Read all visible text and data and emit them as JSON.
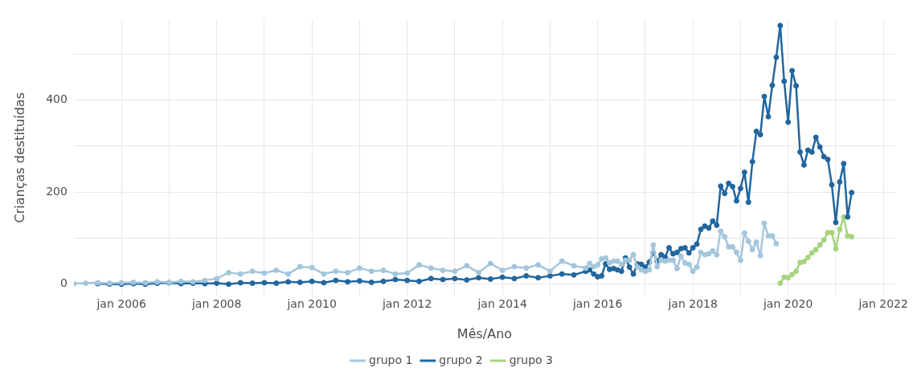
{
  "chart_data": {
    "type": "line",
    "xlabel": "Mês/Ano",
    "ylabel": "Crianças destituídas",
    "xlim": [
      "2005-01",
      "2022-04"
    ],
    "xticks": [
      {
        "value": "2006-01",
        "label": "jan 2006"
      },
      {
        "value": "2007-01",
        "label": null
      },
      {
        "value": "2008-01",
        "label": "jan 2008"
      },
      {
        "value": "2009-01",
        "label": null
      },
      {
        "value": "2010-01",
        "label": "jan 2010"
      },
      {
        "value": "2011-01",
        "label": null
      },
      {
        "value": "2012-01",
        "label": "jan 2012"
      },
      {
        "value": "2013-01",
        "label": null
      },
      {
        "value": "2014-01",
        "label": "jan 2014"
      },
      {
        "value": "2015-01",
        "label": null
      },
      {
        "value": "2016-01",
        "label": "jan 2016"
      },
      {
        "value": "2017-01",
        "label": null
      },
      {
        "value": "2018-01",
        "label": "jan 2018"
      },
      {
        "value": "2019-01",
        "label": null
      },
      {
        "value": "2020-01",
        "label": "jan 2020"
      },
      {
        "value": "2021-01",
        "label": null
      },
      {
        "value": "2022-01",
        "label": "jan 2022"
      }
    ],
    "ylim": [
      -25,
      575
    ],
    "yticks": [
      0,
      {
        "value": 100,
        "label": null
      },
      200,
      {
        "value": 300,
        "label": null
      },
      400,
      {
        "value": 500,
        "label": null
      }
    ],
    "grid": true,
    "legend": "bottom",
    "marker": "circle",
    "line_style": "solid",
    "series": [
      {
        "name": "grupo 1",
        "color": "#a3c6dc",
        "x": [
          "2005-01",
          "2005-04",
          "2005-07",
          "2005-10",
          "2006-01",
          "2006-04",
          "2006-07",
          "2006-10",
          "2007-01",
          "2007-04",
          "2007-07",
          "2007-10",
          "2008-01",
          "2008-04",
          "2008-07",
          "2008-10",
          "2009-01",
          "2009-04",
          "2009-07",
          "2009-10",
          "2010-01",
          "2010-04",
          "2010-07",
          "2010-10",
          "2011-01",
          "2011-04",
          "2011-07",
          "2011-10",
          "2012-01",
          "2012-04",
          "2012-07",
          "2012-10",
          "2013-01",
          "2013-04",
          "2013-07",
          "2013-10",
          "2014-01",
          "2014-04",
          "2014-07",
          "2014-10",
          "2015-01",
          "2015-04",
          "2015-07",
          "2015-10",
          "2015-11",
          "2015-12",
          "2016-01",
          "2016-02",
          "2016-03",
          "2016-04",
          "2016-05",
          "2016-06",
          "2016-07",
          "2016-08",
          "2016-09",
          "2016-10",
          "2016-11",
          "2016-12",
          "2017-01",
          "2017-02",
          "2017-03",
          "2017-04",
          "2017-05",
          "2017-06",
          "2017-07",
          "2017-08",
          "2017-09",
          "2017-10",
          "2017-11",
          "2017-12",
          "2018-01",
          "2018-02",
          "2018-03",
          "2018-04",
          "2018-05",
          "2018-06",
          "2018-07",
          "2018-08",
          "2018-09",
          "2018-10",
          "2018-11",
          "2018-12",
          "2019-01",
          "2019-02",
          "2019-03",
          "2019-04",
          "2019-05",
          "2019-06",
          "2019-07",
          "2019-08",
          "2019-09",
          "2019-10"
        ],
        "values": [
          1,
          2,
          3,
          2,
          3,
          4,
          3,
          5,
          4,
          6,
          5,
          8,
          12,
          25,
          22,
          28,
          24,
          30,
          22,
          38,
          36,
          22,
          28,
          25,
          35,
          28,
          30,
          22,
          24,
          42,
          35,
          30,
          28,
          40,
          25,
          45,
          30,
          38,
          35,
          42,
          28,
          50,
          40,
          35,
          45,
          38,
          42,
          55,
          57,
          46,
          50,
          50,
          43,
          52,
          52,
          64,
          37,
          31,
          28,
          31,
          85,
          38,
          52,
          50,
          52,
          52,
          34,
          61,
          46,
          43,
          28,
          37,
          69,
          64,
          66,
          72,
          64,
          115,
          103,
          81,
          81,
          69,
          52,
          111,
          93,
          75,
          91,
          62,
          132,
          105,
          105,
          88
        ]
      },
      {
        "name": "grupo 2",
        "color": "#21669f",
        "x": [
          "2005-07",
          "2005-10",
          "2006-01",
          "2006-04",
          "2006-07",
          "2006-10",
          "2007-01",
          "2007-04",
          "2007-07",
          "2007-10",
          "2008-01",
          "2008-04",
          "2008-07",
          "2008-10",
          "2009-01",
          "2009-04",
          "2009-07",
          "2009-10",
          "2010-01",
          "2010-04",
          "2010-07",
          "2010-10",
          "2011-01",
          "2011-04",
          "2011-07",
          "2011-10",
          "2012-01",
          "2012-04",
          "2012-07",
          "2012-10",
          "2013-01",
          "2013-04",
          "2013-07",
          "2013-10",
          "2014-01",
          "2014-04",
          "2014-07",
          "2014-10",
          "2015-01",
          "2015-04",
          "2015-07",
          "2015-10",
          "2015-11",
          "2015-12",
          "2016-01",
          "2016-02",
          "2016-03",
          "2016-04",
          "2016-05",
          "2016-06",
          "2016-07",
          "2016-08",
          "2016-09",
          "2016-10",
          "2016-11",
          "2016-12",
          "2017-01",
          "2017-02",
          "2017-03",
          "2017-04",
          "2017-05",
          "2017-06",
          "2017-07",
          "2017-08",
          "2017-09",
          "2017-10",
          "2017-11",
          "2017-12",
          "2018-01",
          "2018-02",
          "2018-03",
          "2018-04",
          "2018-05",
          "2018-06",
          "2018-07",
          "2018-08",
          "2018-09",
          "2018-10",
          "2018-11",
          "2018-12",
          "2019-01",
          "2019-02",
          "2019-03",
          "2019-04",
          "2019-05",
          "2019-06",
          "2019-07",
          "2019-08",
          "2019-09",
          "2019-10",
          "2019-11",
          "2019-12",
          "2020-01",
          "2020-02",
          "2020-03",
          "2020-04",
          "2020-05",
          "2020-06",
          "2020-07",
          "2020-08",
          "2020-09",
          "2020-10",
          "2020-11",
          "2020-12",
          "2021-01",
          "2021-02",
          "2021-03",
          "2021-04",
          "2021-05"
        ],
        "values": [
          1,
          0,
          0,
          1,
          0,
          2,
          3,
          1,
          2,
          1,
          2,
          0,
          3,
          2,
          3,
          2,
          5,
          4,
          6,
          3,
          8,
          5,
          7,
          4,
          6,
          10,
          8,
          6,
          12,
          10,
          12,
          9,
          14,
          11,
          15,
          12,
          18,
          14,
          18,
          22,
          20,
          28,
          31,
          22,
          16,
          18,
          44,
          32,
          34,
          31,
          28,
          57,
          37,
          22,
          44,
          43,
          37,
          48,
          68,
          50,
          64,
          59,
          79,
          66,
          69,
          77,
          79,
          68,
          79,
          87,
          119,
          126,
          122,
          137,
          128,
          213,
          197,
          219,
          212,
          181,
          208,
          243,
          178,
          266,
          332,
          325,
          408,
          364,
          432,
          493,
          562,
          441,
          352,
          464,
          431,
          287,
          259,
          291,
          287,
          319,
          298,
          277,
          271,
          216,
          134,
          222,
          262,
          146,
          199
        ]
      },
      {
        "name": "grupo 3",
        "color": "#a7d480",
        "x": [
          "2019-11",
          "2019-12",
          "2020-01",
          "2020-02",
          "2020-03",
          "2020-04",
          "2020-05",
          "2020-06",
          "2020-07",
          "2020-08",
          "2020-09",
          "2020-10",
          "2020-11",
          "2020-12",
          "2021-01",
          "2021-02",
          "2021-03",
          "2021-04",
          "2021-05"
        ],
        "values": [
          2,
          15,
          14,
          21,
          28,
          47,
          49,
          58,
          68,
          75,
          85,
          96,
          112,
          112,
          77,
          119,
          146,
          105,
          103
        ]
      }
    ]
  }
}
